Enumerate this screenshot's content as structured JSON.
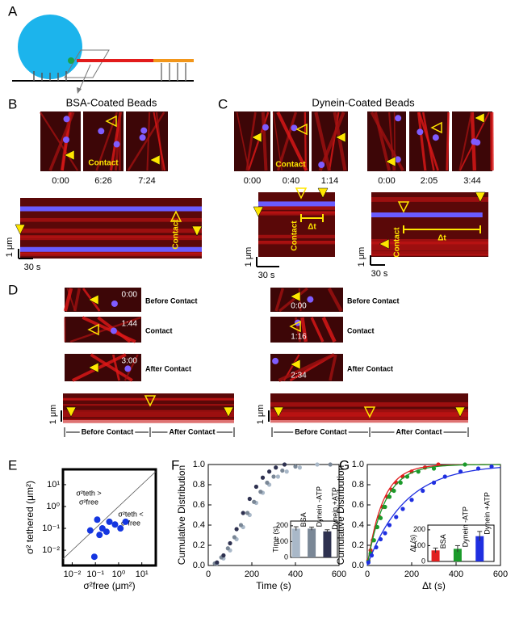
{
  "panel_labels": [
    "A",
    "B",
    "C",
    "D",
    "E",
    "F",
    "G"
  ],
  "panel_b": {
    "title": "BSA-Coated Beads",
    "times": [
      "0:00",
      "6:26",
      "7:24"
    ],
    "contact": "Contact",
    "scale_um": "1 μm",
    "scale_s": "30 s"
  },
  "panel_c": {
    "title": "Dynein-Coated Beads",
    "left_times": [
      "0:00",
      "0:40",
      "1:14"
    ],
    "right_times": [
      "0:00",
      "2:05",
      "3:44"
    ],
    "contact": "Contact",
    "delta": "Δt",
    "scale_um": "1 μm",
    "scale_s": "30 s"
  },
  "panel_d": {
    "left_times": [
      "0:00",
      "1:44",
      "3:00"
    ],
    "right_times": [
      "0:00",
      "1:16",
      "2:34"
    ],
    "stages": [
      "Before Contact",
      "Contact",
      "After Contact"
    ],
    "scale_um": "1 μm"
  },
  "chart_data": [
    {
      "type": "scatter",
      "xscale": "log",
      "yscale": "log",
      "color": "#1436e0",
      "diagonal": true,
      "xlabel": "σ²free (μm²)",
      "ylabel": "σ² tethered (μm²)",
      "annotations": [
        [
          "σ²teth >",
          "σ²free"
        ],
        [
          "σ²teth <",
          "σ²free"
        ]
      ],
      "x": [
        0.06,
        0.12,
        0.15,
        0.2,
        0.3,
        0.4,
        0.7,
        1.2,
        2,
        0.09
      ],
      "values": [
        0.08,
        0.25,
        0.05,
        0.1,
        0.07,
        0.2,
        0.15,
        0.1,
        0.2,
        0.005
      ],
      "xlim": [
        0.004,
        40
      ],
      "ylim": [
        0.002,
        50
      ],
      "xticks": [
        {
          "value": 0.01,
          "label": "10⁻²"
        },
        {
          "value": 0.1,
          "label": "10⁻¹"
        },
        {
          "value": 1,
          "label": "10⁰"
        },
        {
          "value": 10,
          "label": "10¹"
        }
      ],
      "yticks": [
        {
          "value": 0.01,
          "label": "10⁻²"
        },
        {
          "value": 0.1,
          "label": "10⁻¹"
        },
        {
          "value": 1,
          "label": "10⁰"
        },
        {
          "value": 10,
          "label": "10¹"
        }
      ]
    },
    {
      "type": "scatter",
      "xlabel": "Time (s)",
      "ylabel": "Cumulative Distribution",
      "xlim": [
        0,
        600
      ],
      "xticks": [
        0,
        200,
        400,
        600
      ],
      "ylim": [
        0,
        1
      ],
      "yticks": [
        {
          "value": 0,
          "label": "0.0"
        },
        0.2,
        0.4,
        0.6,
        0.8,
        {
          "value": 1,
          "label": "1.0"
        }
      ],
      "series": [
        {
          "color": "#a9b8c8",
          "x": [
            40,
            70,
            100,
            130,
            160,
            190,
            220,
            250,
            280,
            320,
            360,
            420,
            500
          ],
          "values": [
            0.02,
            0.07,
            0.15,
            0.26,
            0.38,
            0.5,
            0.62,
            0.72,
            0.8,
            0.88,
            0.93,
            0.97,
            1.0
          ]
        },
        {
          "color": "#7a8796",
          "x": [
            30,
            60,
            90,
            120,
            150,
            180,
            210,
            240,
            270,
            300,
            340,
            400,
            560
          ],
          "values": [
            0.02,
            0.08,
            0.17,
            0.28,
            0.4,
            0.52,
            0.63,
            0.73,
            0.82,
            0.88,
            0.94,
            0.98,
            1.0
          ]
        },
        {
          "color": "#2e3150",
          "x": [
            40,
            70,
            100,
            130,
            160,
            190,
            220,
            250,
            280,
            310,
            350
          ],
          "values": [
            0.03,
            0.1,
            0.22,
            0.36,
            0.52,
            0.66,
            0.78,
            0.87,
            0.93,
            0.97,
            1.0
          ]
        }
      ],
      "inset": {
        "type": "bar",
        "ylabel": "Time (s)",
        "categories": [
          "BSA",
          "Dynein -ATP",
          "Dynein +ATP"
        ],
        "colors": [
          "#a9b8c8",
          "#7a8796",
          "#2e3150"
        ],
        "values": [
          182,
          182,
          165
        ],
        "errors": [
          12,
          10,
          10
        ],
        "ylim": [
          0,
          230
        ],
        "yticks": [
          0,
          100,
          200
        ]
      }
    },
    {
      "type": "scatter",
      "xlabel": "Δt (s)",
      "ylabel": "Cumulative Distribution",
      "xlim": [
        0,
        600
      ],
      "xticks": [
        0,
        200,
        400,
        600
      ],
      "ylim": [
        0,
        1
      ],
      "yticks": [
        {
          "value": 0,
          "label": "0.0"
        },
        0.2,
        0.4,
        0.6,
        0.8,
        {
          "value": 1,
          "label": "1.0"
        }
      ],
      "series": [
        {
          "color": "#e02020",
          "fit_tau": 70,
          "x": [
            5,
            15,
            25,
            40,
            55,
            70,
            90,
            110,
            130,
            160,
            200,
            260,
            320
          ],
          "values": [
            0.05,
            0.15,
            0.25,
            0.38,
            0.48,
            0.58,
            0.68,
            0.75,
            0.82,
            0.88,
            0.93,
            0.97,
            1.0
          ]
        },
        {
          "color": "#1a9a2a",
          "fit_tau": 80,
          "x": [
            5,
            15,
            30,
            45,
            60,
            80,
            100,
            120,
            150,
            180,
            230,
            300,
            440
          ],
          "values": [
            0.04,
            0.12,
            0.25,
            0.38,
            0.47,
            0.58,
            0.68,
            0.74,
            0.82,
            0.88,
            0.93,
            0.96,
            1.0
          ]
        },
        {
          "color": "#1f2fe0",
          "fit_tau": 170,
          "x": [
            5,
            20,
            40,
            60,
            80,
            100,
            130,
            160,
            200,
            250,
            300,
            350,
            420,
            500,
            560
          ],
          "values": [
            0.03,
            0.1,
            0.18,
            0.26,
            0.32,
            0.4,
            0.48,
            0.56,
            0.65,
            0.74,
            0.82,
            0.88,
            0.93,
            0.96,
            0.98
          ]
        }
      ],
      "inset": {
        "type": "bar",
        "ylabel": "Δt (s)",
        "categories": [
          "BSA",
          "Dynein -ATP",
          "Dynein +ATP"
        ],
        "colors": [
          "#e02020",
          "#1a9a2a",
          "#1f2fe0"
        ],
        "values": [
          70,
          80,
          160
        ],
        "errors": [
          15,
          20,
          30
        ],
        "ylim": [
          0,
          230
        ],
        "yticks": [
          0,
          100,
          200
        ]
      }
    }
  ]
}
